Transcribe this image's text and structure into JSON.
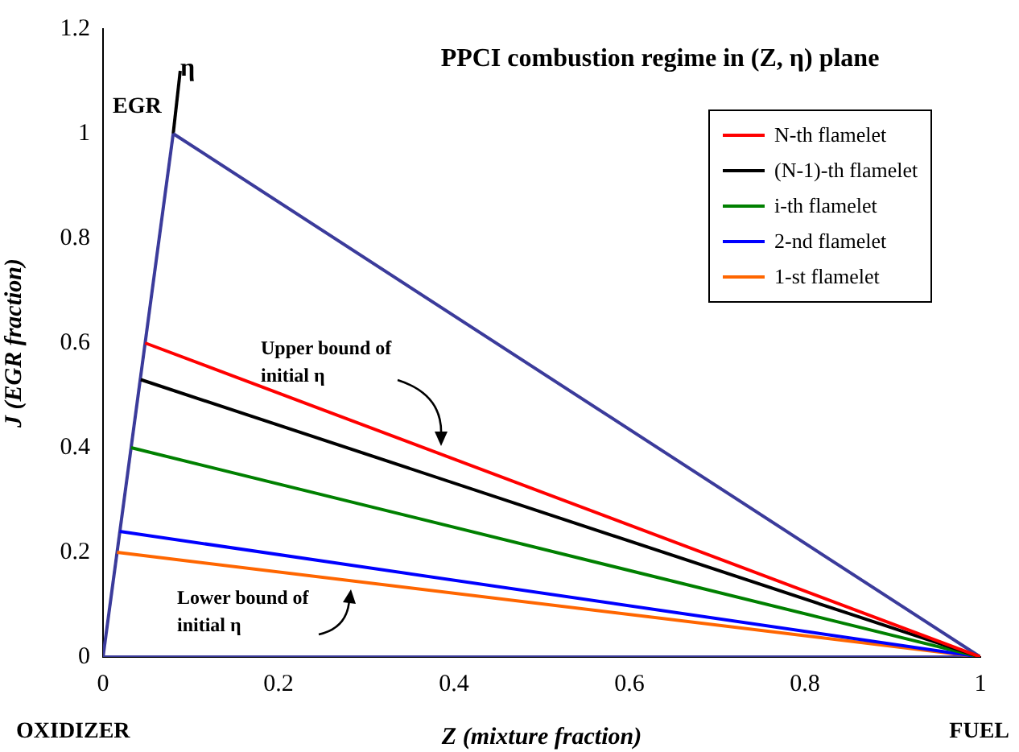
{
  "chart_data": {
    "type": "line",
    "title": "PPCI combustion regime in (Z, η) plane",
    "xlabel": "Z (mixture fraction)",
    "ylabel": "J (EGR fraction)",
    "xlim": [
      0,
      1
    ],
    "xticks": [
      0,
      0.2,
      0.4,
      0.6,
      0.8,
      1
    ],
    "ylim": [
      0,
      1.2
    ],
    "yticks": [
      0,
      0.2,
      0.4,
      0.6,
      0.8,
      1,
      1.2
    ],
    "grid": false,
    "legend": "top right",
    "marker": "none",
    "line_style": "solid",
    "series": [
      {
        "name": "N-th flamelet",
        "color": "#ff0000",
        "x": [
          0.048,
          1
        ],
        "values": [
          0.6,
          0
        ]
      },
      {
        "name": "(N-1)-th flamelet",
        "color": "#000000",
        "x": [
          0.043,
          1
        ],
        "values": [
          0.53,
          0
        ]
      },
      {
        "name": "i-th flamelet",
        "color": "#008000",
        "x": [
          0.032,
          1
        ],
        "values": [
          0.4,
          0
        ]
      },
      {
        "name": "2-nd flamelet",
        "color": "#0000ff",
        "x": [
          0.019,
          1
        ],
        "values": [
          0.24,
          0
        ]
      },
      {
        "name": "1-st flamelet",
        "color": "#ff6600",
        "x": [
          0.016,
          1
        ],
        "values": [
          0.2,
          0
        ]
      },
      {
        "color": "#3b3b9b",
        "x": [
          0.08,
          1
        ],
        "values": [
          1,
          0
        ]
      },
      {
        "color": "#3b3b9b",
        "x": [
          0,
          0.08
        ],
        "values": [
          0,
          1
        ]
      },
      {
        "color": "#3b3b9b",
        "x": [
          0,
          1
        ],
        "values": [
          0,
          0
        ]
      },
      {
        "color": "#000000",
        "x": [
          0.08,
          0.088
        ],
        "values": [
          1,
          1.12
        ]
      }
    ],
    "annotations": [
      "η",
      "EGR",
      "Upper bound of\ninitial η",
      "Lower bound of\ninitial η",
      "OXIDIZER",
      "FUEL"
    ]
  }
}
